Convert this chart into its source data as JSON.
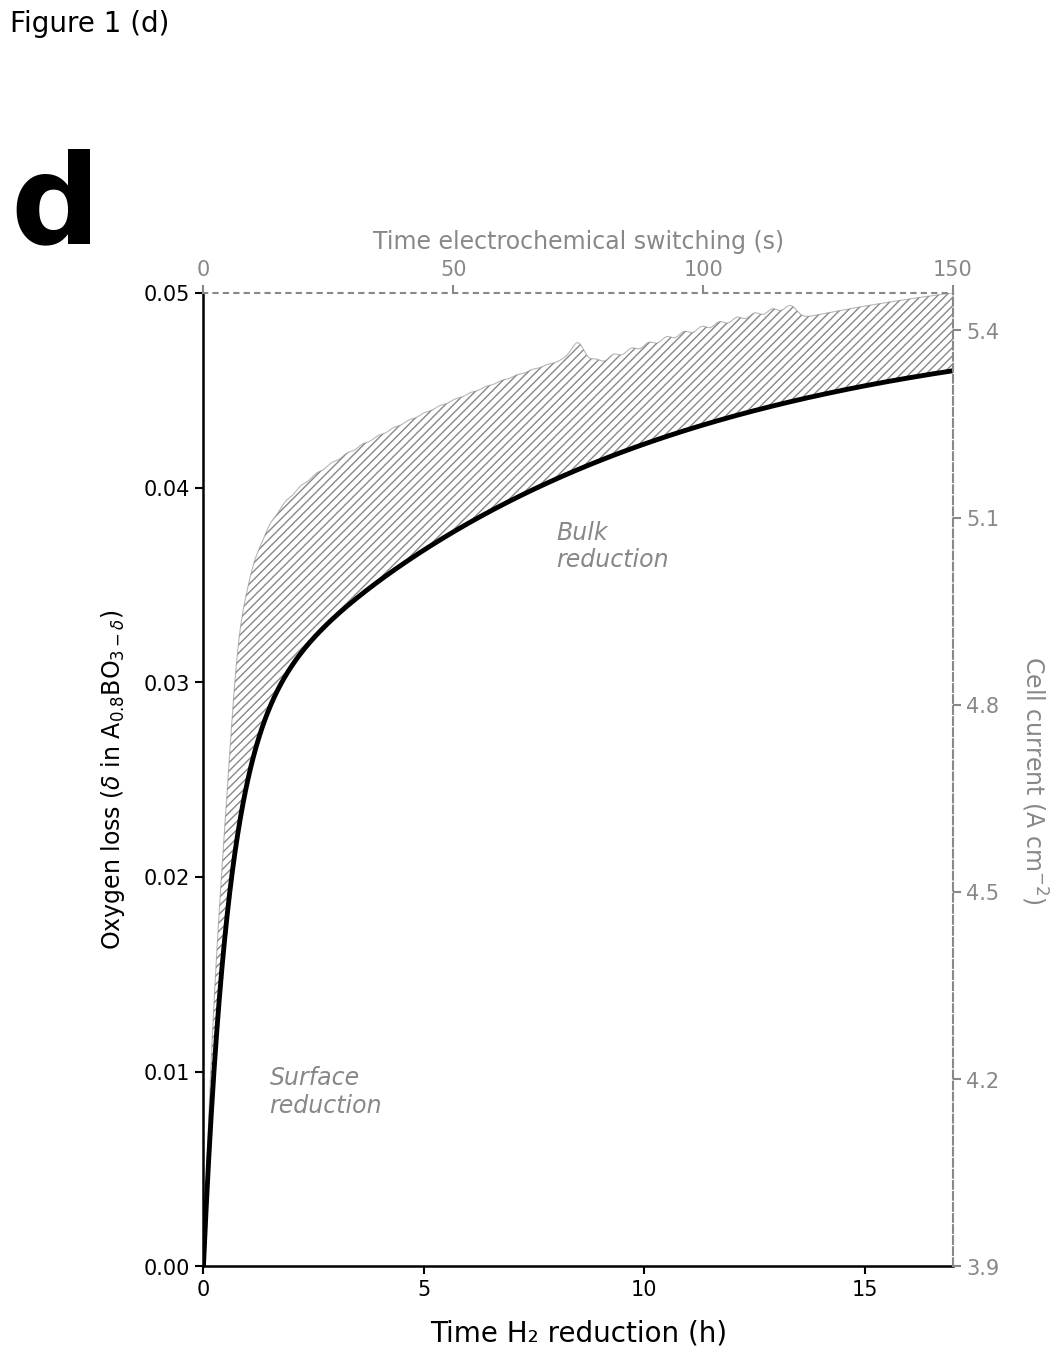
{
  "figure_label": "Figure 1 (d)",
  "panel_label": "d",
  "title_top": "Time electrochemical switching (s)",
  "xlabel": "Time H₂ reduction (h)",
  "ylabel_left": "Oxygen loss (δ in A₀.₈BO₃₋δ)",
  "ylabel_right": "Cell current (A cm⁻²)",
  "xlim": [
    0,
    17
  ],
  "ylim_left": [
    0.0,
    0.05
  ],
  "ylim_right": [
    3.9,
    5.46
  ],
  "xticks_bottom": [
    0,
    5,
    10,
    15
  ],
  "yticks_left": [
    0.0,
    0.01,
    0.02,
    0.03,
    0.04,
    0.05
  ],
  "xticks_top": [
    0,
    50,
    100,
    150
  ],
  "yticks_right": [
    3.9,
    4.2,
    4.5,
    4.8,
    5.1,
    5.4
  ],
  "annotation_surface": "Surface\nreduction",
  "annotation_bulk": "Bulk\nreduction",
  "surface_x": 1.5,
  "surface_y": 0.009,
  "bulk_x": 8.0,
  "bulk_y": 0.037,
  "bg_color": "#ffffff",
  "line_color_solid": "#000000",
  "annotation_color": "#888888",
  "hatch_color": "#888888",
  "top_axis_color": "#888888",
  "right_axis_color": "#888888"
}
